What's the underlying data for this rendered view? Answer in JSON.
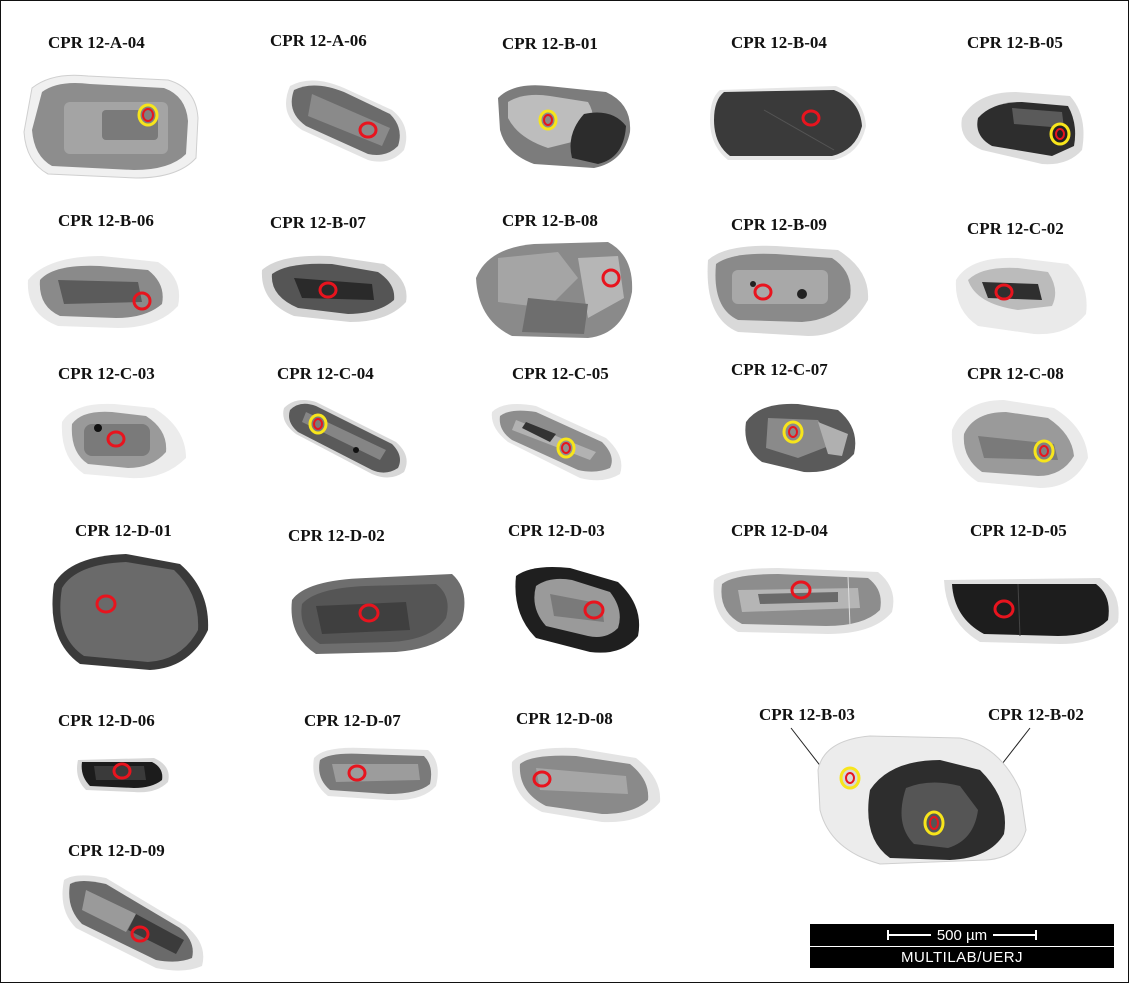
{
  "grains": [
    {
      "label": "CPR 12-A-04",
      "spot": "yellow"
    },
    {
      "label": "CPR 12-A-06",
      "spot": "red"
    },
    {
      "label": "CPR 12-B-01",
      "spot": "yellow"
    },
    {
      "label": "CPR 12-B-04",
      "spot": "red"
    },
    {
      "label": "CPR 12-B-05",
      "spot": "yellow"
    },
    {
      "label": "CPR 12-B-06",
      "spot": "red"
    },
    {
      "label": "CPR 12-B-07",
      "spot": "red"
    },
    {
      "label": "CPR 12-B-08",
      "spot": "red"
    },
    {
      "label": "CPR 12-B-09",
      "spot": "red"
    },
    {
      "label": "CPR 12-C-02",
      "spot": "red"
    },
    {
      "label": "CPR 12-C-03",
      "spot": "red"
    },
    {
      "label": "CPR 12-C-04",
      "spot": "yellow"
    },
    {
      "label": "CPR 12-C-05",
      "spot": "yellow"
    },
    {
      "label": "CPR 12-C-07",
      "spot": "yellow"
    },
    {
      "label": "CPR 12-C-08",
      "spot": "yellow"
    },
    {
      "label": "CPR 12-D-01",
      "spot": "red"
    },
    {
      "label": "CPR 12-D-02",
      "spot": "red"
    },
    {
      "label": "CPR 12-D-03",
      "spot": "red"
    },
    {
      "label": "CPR 12-D-04",
      "spot": "red"
    },
    {
      "label": "CPR 12-D-05",
      "spot": "red"
    },
    {
      "label": "CPR 12-D-06",
      "spot": "red"
    },
    {
      "label": "CPR 12-D-07",
      "spot": "red"
    },
    {
      "label": "CPR 12-D-08",
      "spot": "red"
    },
    {
      "label": "CPR 12-D-09",
      "spot": "red"
    },
    {
      "label": "CPR 12-B-03",
      "spot": "yellow"
    },
    {
      "label": "CPR 12-B-02",
      "spot": "yellow"
    }
  ],
  "scale_bar": {
    "length_label": "500 µm",
    "lab": "MULTILAB/UERJ"
  },
  "colors": {
    "spot_red": "#e8141e",
    "spot_yellow": "#f7e51b",
    "background": "#ffffff"
  }
}
